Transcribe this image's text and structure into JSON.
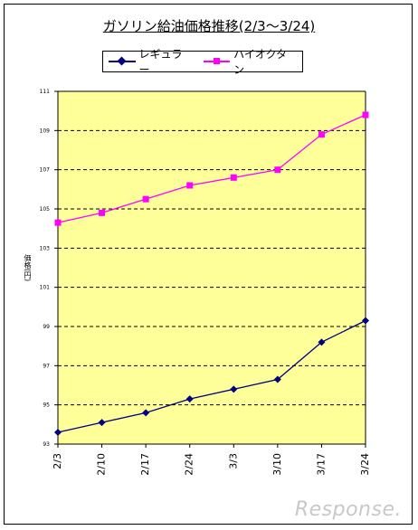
{
  "chart_data": {
    "type": "line",
    "title": "ガソリン給油価格推移(2/3〜3/24)",
    "xlabel": "",
    "ylabel": "価格(円)",
    "categories": [
      "2/3",
      "2/10",
      "2/17",
      "2/24",
      "3/3",
      "3/10",
      "3/17",
      "3/24"
    ],
    "ylim": [
      93,
      111
    ],
    "yticks": [
      "93",
      "95",
      "97",
      "99",
      "101",
      "103",
      "105",
      "107",
      "109",
      "111"
    ],
    "grid": "horizontal dashed",
    "legend_position": "top",
    "series": [
      {
        "name": "レギュラー",
        "color": "#000080",
        "marker": "diamond",
        "values": [
          93.6,
          94.1,
          94.6,
          95.3,
          95.8,
          96.3,
          98.2,
          99.3
        ]
      },
      {
        "name": "ハイオクタン",
        "color": "#ff00ff",
        "marker": "square",
        "values": [
          104.3,
          104.8,
          105.5,
          106.2,
          106.6,
          107.0,
          108.8,
          109.8
        ]
      }
    ],
    "plot_background": "#ffff99"
  },
  "watermark": "Response."
}
